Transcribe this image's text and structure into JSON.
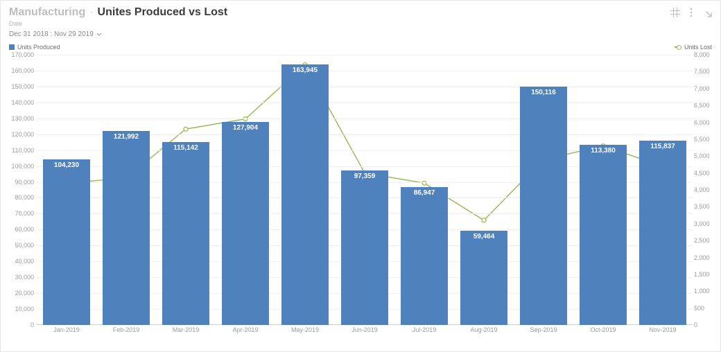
{
  "header": {
    "breadcrumb": "Manufacturing",
    "separator": "·",
    "title": "Unites Produced vs Lost",
    "date_label": "Date",
    "date_range": "Dec 31 2018 : Nov 29 2019"
  },
  "legend": {
    "left_label": "Units Produced",
    "right_label": "Units Lost"
  },
  "chart": {
    "type": "bar+line",
    "background_color": "#ffffff",
    "grid_color": "#eeeeee",
    "bar_color": "#4f81bd",
    "bar_label_color": "#ffffff",
    "line_color": "#9bbb59",
    "marker_fill": "#ffffff",
    "axis_text_color": "#9b9b9b",
    "bar_width_ratio": 0.78,
    "categories": [
      "Jan-2019",
      "Feb-2019",
      "Mar-2019",
      "Apr-2019",
      "May-2019",
      "Jun-2019",
      "Jul-2019",
      "Aug-2019",
      "Sep-2019",
      "Oct-2019",
      "Nov-2019"
    ],
    "bars": {
      "values": [
        104230,
        121992,
        115142,
        127904,
        163945,
        97359,
        86947,
        59464,
        150116,
        113380,
        115837
      ],
      "labels": [
        "104,230",
        "121,992",
        "115,142",
        "127,904",
        "163,945",
        "97,359",
        "86,947",
        "59,464",
        "150,116",
        "113,380",
        "115,837"
      ]
    },
    "line": {
      "values": [
        4200,
        4350,
        5800,
        6100,
        7700,
        4500,
        4200,
        3100,
        4900,
        5300,
        4700
      ]
    },
    "y_left": {
      "min": 0,
      "max": 170000,
      "step": 10000,
      "ticks": [
        0,
        10000,
        20000,
        30000,
        40000,
        50000,
        60000,
        70000,
        80000,
        90000,
        100000,
        110000,
        120000,
        130000,
        140000,
        150000,
        160000,
        170000
      ],
      "tick_labels": [
        "0",
        "10,000",
        "20,000",
        "30,000",
        "40,000",
        "50,000",
        "60,000",
        "70,000",
        "80,000",
        "90,000",
        "100,000",
        "110,000",
        "120,000",
        "130,000",
        "140,000",
        "150,000",
        "160,000",
        "170,000"
      ]
    },
    "y_right": {
      "min": 0,
      "max": 8000,
      "step": 500,
      "ticks": [
        0,
        500,
        1000,
        1500,
        2000,
        2500,
        3000,
        3500,
        4000,
        4500,
        5000,
        5500,
        6000,
        6500,
        7000,
        7500,
        8000
      ],
      "tick_labels": [
        "0",
        "500",
        "1,000",
        "1,500",
        "2,000",
        "2,500",
        "3,000",
        "3,500",
        "4,000",
        "4,500",
        "5,000",
        "5,500",
        "6,000",
        "6,500",
        "7,000",
        "7,500",
        "8,000"
      ]
    }
  }
}
